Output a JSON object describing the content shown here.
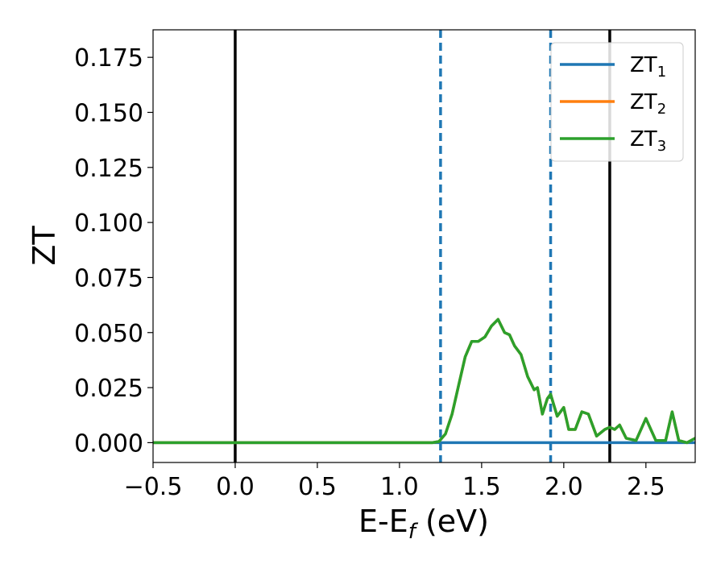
{
  "chart_data": {
    "type": "line",
    "title": "",
    "xlabel": {
      "main": "E-E",
      "sub": "f",
      "suffix": " (eV)"
    },
    "ylabel": "ZT",
    "xlim": [
      -0.5,
      2.8
    ],
    "ylim": [
      -0.009,
      0.1875
    ],
    "x_ticks": [
      -0.5,
      0.0,
      0.5,
      1.0,
      1.5,
      2.0,
      2.5
    ],
    "x_tick_labels": [
      "−0.5",
      "0.0",
      "0.5",
      "1.0",
      "1.5",
      "2.0",
      "2.5"
    ],
    "y_ticks": [
      0.0,
      0.025,
      0.05,
      0.075,
      0.1,
      0.125,
      0.15,
      0.175
    ],
    "y_tick_labels": [
      "0.000",
      "0.025",
      "0.050",
      "0.075",
      "0.100",
      "0.125",
      "0.150",
      "0.175"
    ],
    "grid": false,
    "legend": "top-right",
    "vlines": [
      {
        "x": 0.0,
        "style": "solid",
        "color": "#000000"
      },
      {
        "x": 2.28,
        "style": "solid",
        "color": "#000000"
      },
      {
        "x": 1.25,
        "style": "dashed",
        "color": "#1f77b4"
      },
      {
        "x": 1.92,
        "style": "dashed",
        "color": "#1f77b4"
      }
    ],
    "series": [
      {
        "name": "ZT",
        "sub": "1",
        "color": "#1f77b4",
        "x": [
          -0.5,
          2.8
        ],
        "y": [
          0.0,
          0.0
        ]
      },
      {
        "name": "ZT",
        "sub": "2",
        "color": "#ff7f0e",
        "x": [
          -0.5,
          1.2,
          1.24,
          1.28,
          1.32,
          1.36,
          1.4,
          1.44,
          1.48,
          1.52,
          1.56,
          1.6,
          1.64,
          1.67,
          1.7,
          1.74,
          1.78,
          1.82,
          1.84,
          1.87,
          1.9,
          1.92,
          1.96,
          2.0,
          2.03,
          2.07,
          2.11,
          2.15,
          2.2,
          2.25,
          2.28,
          2.31,
          2.34,
          2.38,
          2.44,
          2.5,
          2.56,
          2.62,
          2.66,
          2.7,
          2.75,
          2.8
        ],
        "y": [
          0.0,
          0.0,
          0.0005,
          0.004,
          0.013,
          0.026,
          0.039,
          0.046,
          0.046,
          0.048,
          0.053,
          0.056,
          0.05,
          0.049,
          0.044,
          0.04,
          0.03,
          0.024,
          0.025,
          0.013,
          0.02,
          0.022,
          0.012,
          0.016,
          0.006,
          0.006,
          0.014,
          0.013,
          0.003,
          0.006,
          0.007,
          0.006,
          0.008,
          0.002,
          0.001,
          0.011,
          0.001,
          0.001,
          0.014,
          0.001,
          0.0,
          0.002
        ]
      },
      {
        "name": "ZT",
        "sub": "3",
        "color": "#2ca02c",
        "x": [
          -0.5,
          1.2,
          1.24,
          1.28,
          1.32,
          1.36,
          1.4,
          1.44,
          1.48,
          1.52,
          1.56,
          1.6,
          1.64,
          1.67,
          1.7,
          1.74,
          1.78,
          1.82,
          1.84,
          1.87,
          1.9,
          1.92,
          1.96,
          2.0,
          2.03,
          2.07,
          2.11,
          2.15,
          2.2,
          2.25,
          2.28,
          2.31,
          2.34,
          2.38,
          2.44,
          2.5,
          2.56,
          2.62,
          2.66,
          2.7,
          2.75,
          2.8
        ],
        "y": [
          0.0,
          0.0,
          0.0005,
          0.004,
          0.013,
          0.026,
          0.039,
          0.046,
          0.046,
          0.048,
          0.053,
          0.056,
          0.05,
          0.049,
          0.044,
          0.04,
          0.03,
          0.024,
          0.025,
          0.013,
          0.02,
          0.022,
          0.012,
          0.016,
          0.006,
          0.006,
          0.014,
          0.013,
          0.003,
          0.006,
          0.007,
          0.006,
          0.008,
          0.002,
          0.001,
          0.011,
          0.001,
          0.001,
          0.014,
          0.001,
          0.0,
          0.002
        ]
      }
    ]
  }
}
